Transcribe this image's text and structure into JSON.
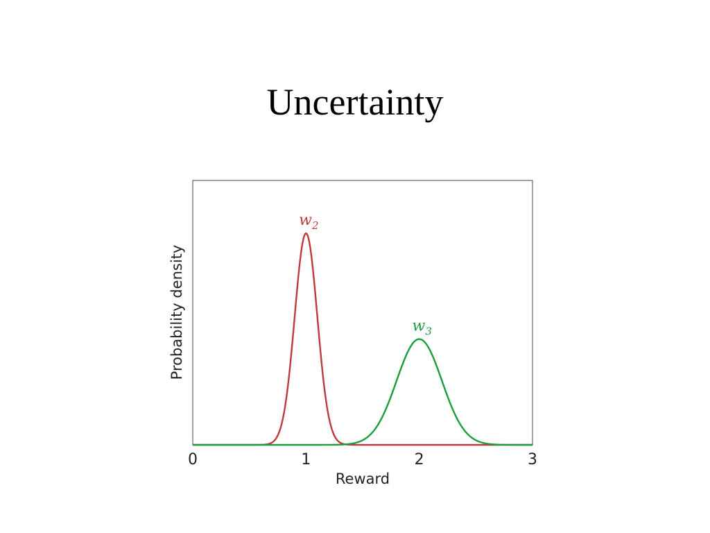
{
  "slide": {
    "title": "Uncertainty"
  },
  "chart_data": {
    "type": "line",
    "xlabel": "Reward",
    "ylabel": "Probability density",
    "xlim": [
      0,
      3
    ],
    "ylim": [
      0,
      1.25
    ],
    "x_ticks": [
      "0",
      "1",
      "2",
      "3"
    ],
    "y_ticks_labeled": false,
    "grid": false,
    "series": [
      {
        "name": "w",
        "subscript": "2",
        "color": "#c0393b",
        "label_color": "#c0393b",
        "distribution": "normal",
        "mean": 1.0,
        "sd": 0.1,
        "peak": 1.0
      },
      {
        "name": "w",
        "subscript": "3",
        "color": "#1a9e3c",
        "label_color": "#1a9e3c",
        "distribution": "normal",
        "mean": 2.0,
        "sd": 0.2,
        "peak": 0.5
      }
    ]
  }
}
